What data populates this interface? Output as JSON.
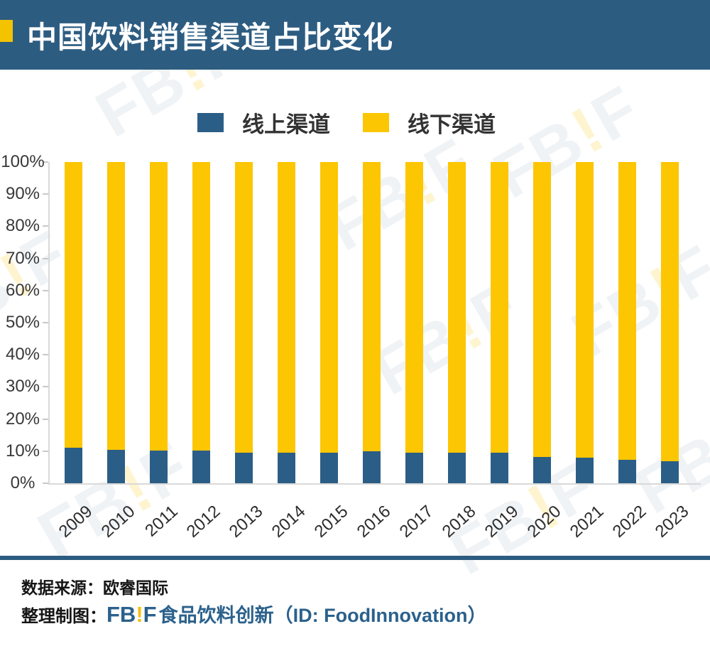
{
  "header": {
    "title": "中国饮料销售渠道占比变化"
  },
  "legend": {
    "items": [
      {
        "label": "线上渠道",
        "color": "#2B5E86"
      },
      {
        "label": "线下渠道",
        "color": "#FCC602"
      }
    ]
  },
  "chart_data": {
    "type": "bar",
    "stacked": true,
    "unit": "%",
    "title": "中国饮料销售渠道占比变化",
    "categories": [
      "2009",
      "2010",
      "2011",
      "2012",
      "2013",
      "2014",
      "2015",
      "2016",
      "2017",
      "2018",
      "2019",
      "2020",
      "2021",
      "2022",
      "2023"
    ],
    "series": [
      {
        "name": "线上渠道",
        "color": "#2B5E86",
        "values": [
          11.0,
          10.5,
          10.1,
          10.1,
          9.6,
          9.5,
          9.6,
          10.0,
          9.6,
          9.5,
          9.5,
          8.1,
          8.0,
          7.2,
          6.9
        ]
      },
      {
        "name": "线下渠道",
        "color": "#FCC602",
        "values": [
          89.0,
          89.5,
          89.9,
          89.9,
          90.4,
          90.5,
          90.4,
          90.0,
          90.4,
          90.5,
          90.5,
          91.9,
          92.0,
          92.8,
          93.1
        ]
      }
    ],
    "y_tick_labels": [
      "100%",
      "90%",
      "80%",
      "70%",
      "60%",
      "50%",
      "40%",
      "30%",
      "20%",
      "10%",
      "0%"
    ],
    "ylim": [
      0,
      100
    ],
    "grid": false,
    "legend_position": "top-center"
  },
  "watermark": {
    "fb": "FB",
    "bang": "!",
    "f": "F"
  },
  "footer": {
    "source": "数据来源：欧睿国际",
    "credit_prefix": "整理制图：",
    "logo_fb": "FB",
    "logo_bang": "!",
    "logo_f": "F",
    "credit_text": "食品饮料创新（ID: FoodInnovation）"
  },
  "colors": {
    "accent_yellow": "#F3C300",
    "header_blue": "#2D5C81",
    "bar_blue": "#2B5E86",
    "bar_yellow": "#FCC602",
    "footer_blue": "#2B618C"
  }
}
